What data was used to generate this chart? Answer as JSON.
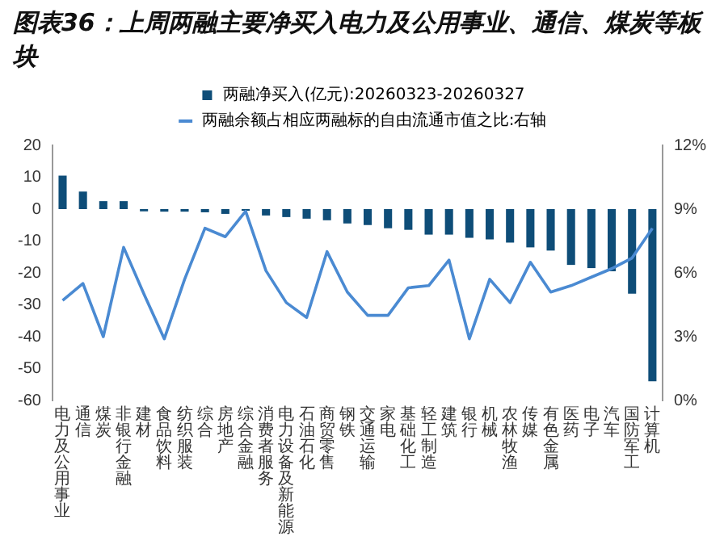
{
  "chart_data": {
    "type": "bar",
    "title": "图表36：上周两融主要净买入电力及公用事业、通信、煤炭等板块",
    "categories": [
      "电力及公用事业",
      "通信",
      "煤炭",
      "非银行金融",
      "建材",
      "食品饮料",
      "纺织服装",
      "综合",
      "房地产",
      "综合金融",
      "消费者服务",
      "电力设备及新能源",
      "石油石化",
      "商贸零售",
      "钢铁",
      "交通运输",
      "家电",
      "基础化工",
      "轻工制造",
      "建筑",
      "银行",
      "机械",
      "农林牧渔",
      "传媒",
      "有色金属",
      "医药",
      "电子",
      "汽车",
      "国防军工",
      "计算机"
    ],
    "series": [
      {
        "name": "两融净买入(亿元):20260323-20260327",
        "color": "#0e4d78",
        "values": [
          10.5,
          5.5,
          2.5,
          2.5,
          -0.7,
          -0.8,
          -0.8,
          -1,
          -1.5,
          -0.5,
          -2,
          -2.5,
          -3,
          -3.5,
          -4.5,
          -5,
          -6,
          -6.5,
          -8,
          -8,
          -9,
          -9.5,
          -10.5,
          -12,
          -13,
          -17.5,
          -18.5,
          -19.5,
          -26.5,
          -54
        ]
      },
      {
        "name": "两融余额占相应两融标的自由流通市值之比:右轴",
        "type": "line",
        "axis": "y2",
        "color": "#4a8ad2",
        "values": [
          4.7,
          5.5,
          3.0,
          7.2,
          5.0,
          2.9,
          5.7,
          8.1,
          7.7,
          8.9,
          6.1,
          4.6,
          3.9,
          7.0,
          5.1,
          4.0,
          4.0,
          5.3,
          5.4,
          6.6,
          2.9,
          5.7,
          4.6,
          6.5,
          5.1,
          5.4,
          5.8,
          6.2,
          6.7,
          8.1
        ]
      }
    ],
    "ylim": [
      -60,
      20
    ],
    "yticks": [
      -60,
      -50,
      -40,
      -30,
      -20,
      -10,
      0,
      10,
      20
    ],
    "y2lim": [
      0,
      12
    ],
    "y2ticks": [
      {
        "value": 0,
        "label": "0%"
      },
      {
        "value": 3,
        "label": "3%"
      },
      {
        "value": 6,
        "label": "6%"
      },
      {
        "value": 9,
        "label": "9%"
      },
      {
        "value": 12,
        "label": "12%"
      }
    ],
    "grid": false,
    "legend": "top",
    "marker": "none"
  }
}
